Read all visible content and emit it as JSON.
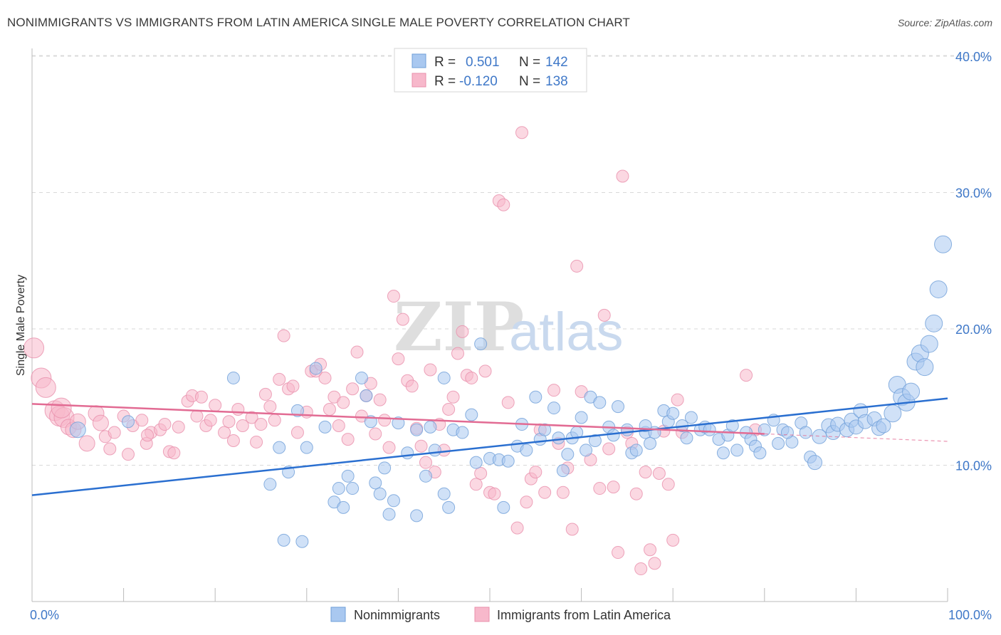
{
  "title": "NONIMMIGRANTS VS IMMIGRANTS FROM LATIN AMERICA SINGLE MALE POVERTY CORRELATION CHART",
  "source": "Source: ZipAtlas.com",
  "watermark": {
    "zip": "ZIP",
    "atlas": "atlas"
  },
  "colors": {
    "blue_fill": "#a9c8f0",
    "blue_stroke": "#6f9fd8",
    "blue_line": "#2a6fd0",
    "pink_fill": "#f7b8cb",
    "pink_stroke": "#e98fab",
    "pink_line": "#e26b93",
    "tick_text": "#3f78c8",
    "grid": "#d9d9d9"
  },
  "legend": {
    "rows": [
      {
        "r_label": "R =",
        "r_value": "0.501",
        "n_label": "N =",
        "n_value": "142"
      },
      {
        "r_label": "R =",
        "r_value": "-0.120",
        "n_label": "N =",
        "n_value": "138"
      }
    ]
  },
  "chart_data": {
    "type": "scatter",
    "title": "NONIMMIGRANTS VS IMMIGRANTS FROM LATIN AMERICA SINGLE MALE POVERTY CORRELATION CHART",
    "xlabel": "",
    "ylabel": "Single Male Poverty",
    "xlim": [
      0,
      100
    ],
    "ylim": [
      0,
      42
    ],
    "x_tick_labels": [
      "0.0%",
      "100.0%"
    ],
    "y_ticks": [
      10,
      20,
      30,
      40
    ],
    "y_tick_labels": [
      "10.0%",
      "20.0%",
      "30.0%",
      "40.0%"
    ],
    "grid": true,
    "legend_position": "top-center",
    "series": [
      {
        "name": "Nonimmigrants",
        "color": "#a9c8f0",
        "trend": {
          "x": [
            0,
            100
          ],
          "y": [
            7.8,
            14.9
          ]
        },
        "points": [
          [
            22,
            16.4
          ],
          [
            27,
            11.3
          ],
          [
            26,
            8.6
          ],
          [
            27.5,
            4.5
          ],
          [
            28,
            9.5
          ],
          [
            29,
            14
          ],
          [
            29.5,
            4.4
          ],
          [
            30,
            11.3
          ],
          [
            31,
            17.1
          ],
          [
            32,
            12.8
          ],
          [
            33,
            7.3
          ],
          [
            33.5,
            8.3
          ],
          [
            34,
            6.9
          ],
          [
            34.5,
            9.2
          ],
          [
            35,
            8.3
          ],
          [
            36,
            16.4
          ],
          [
            36.5,
            15.1
          ],
          [
            37,
            13.2
          ],
          [
            37.5,
            8.7
          ],
          [
            38,
            7.9
          ],
          [
            38.5,
            9.8
          ],
          [
            39,
            6.4
          ],
          [
            39.5,
            7.4
          ],
          [
            40,
            13.1
          ],
          [
            41,
            10.9
          ],
          [
            42,
            12.6
          ],
          [
            42,
            6.3
          ],
          [
            43,
            9.2
          ],
          [
            43.5,
            12.8
          ],
          [
            44,
            11.1
          ],
          [
            45,
            7.9
          ],
          [
            45,
            16.4
          ],
          [
            45.5,
            6.9
          ],
          [
            46,
            12.6
          ],
          [
            47,
            12.4
          ],
          [
            48,
            13.7
          ],
          [
            48.5,
            10.2
          ],
          [
            49,
            18.9
          ],
          [
            50,
            10.5
          ],
          [
            51,
            10.4
          ],
          [
            51.5,
            6.9
          ],
          [
            52,
            10.3
          ],
          [
            53,
            11.4
          ],
          [
            53.5,
            13
          ],
          [
            54,
            11.1
          ],
          [
            55,
            15
          ],
          [
            55.5,
            11.9
          ],
          [
            56,
            12.6
          ],
          [
            57,
            14.2
          ],
          [
            57.5,
            12
          ],
          [
            58,
            9.6
          ],
          [
            58.5,
            10.8
          ],
          [
            59,
            12
          ],
          [
            60,
            13.5
          ],
          [
            60.5,
            11.1
          ],
          [
            61,
            15
          ],
          [
            61.5,
            11.8
          ],
          [
            62,
            14.6
          ],
          [
            63,
            12.8
          ],
          [
            63.5,
            12.2
          ],
          [
            64,
            14.3
          ],
          [
            65,
            12.6
          ],
          [
            65.5,
            10.9
          ],
          [
            66,
            11.1
          ],
          [
            67,
            12.4
          ],
          [
            67.5,
            11.6
          ],
          [
            68,
            12.4
          ],
          [
            69,
            14
          ],
          [
            69.5,
            13.2
          ],
          [
            70,
            13.8
          ],
          [
            71,
            12.9
          ],
          [
            71.5,
            12
          ],
          [
            72,
            13.5
          ],
          [
            73,
            12.6
          ],
          [
            73.5,
            12.8
          ],
          [
            74,
            12.6
          ],
          [
            75,
            11.9
          ],
          [
            75.5,
            10.9
          ],
          [
            76,
            12.2
          ],
          [
            76.5,
            12.9
          ],
          [
            77,
            11.1
          ],
          [
            78,
            12.4
          ],
          [
            78.5,
            11.9
          ],
          [
            79,
            11.4
          ],
          [
            79.5,
            10.9
          ],
          [
            80,
            12.6
          ],
          [
            81,
            13.3
          ],
          [
            81.5,
            11.6
          ],
          [
            82,
            12.6
          ],
          [
            83,
            11.7
          ],
          [
            84,
            13.1
          ],
          [
            84.5,
            12.4
          ],
          [
            85,
            10.6
          ],
          [
            85.5,
            10.2
          ],
          [
            86,
            12.1
          ],
          [
            87,
            12.9
          ],
          [
            87.5,
            12.4
          ],
          [
            88,
            13
          ],
          [
            89,
            12.6
          ],
          [
            89.5,
            13.3
          ],
          [
            90,
            12.8
          ],
          [
            90.5,
            14
          ],
          [
            91,
            13.2
          ],
          [
            92,
            13.4
          ],
          [
            92.5,
            12.7
          ],
          [
            93,
            12.9
          ],
          [
            94,
            13.8
          ],
          [
            94.5,
            15.9
          ],
          [
            95,
            15
          ],
          [
            95.5,
            14.6
          ],
          [
            96,
            15.4
          ],
          [
            96.5,
            17.6
          ],
          [
            97,
            18.2
          ],
          [
            97.5,
            17.2
          ],
          [
            98,
            18.9
          ],
          [
            98.5,
            20.4
          ],
          [
            99,
            22.9
          ],
          [
            99.5,
            26.2
          ],
          [
            10.5,
            13.2
          ],
          [
            5,
            12.6
          ],
          [
            59.5,
            12.4
          ],
          [
            67,
            12.9
          ],
          [
            82.5,
            12.4
          ]
        ]
      },
      {
        "name": "Immigrants from Latin America",
        "color": "#f7b8cb",
        "trend": {
          "x": [
            0,
            80
          ],
          "y": [
            14.5,
            12.3
          ]
        },
        "points": [
          [
            0.2,
            18.6
          ],
          [
            1,
            16.4
          ],
          [
            1.5,
            15.7
          ],
          [
            2.5,
            14
          ],
          [
            3,
            13.6
          ],
          [
            3.5,
            13.5
          ],
          [
            4,
            12.8
          ],
          [
            4.5,
            12.6
          ],
          [
            5,
            13.2
          ],
          [
            6,
            11.6
          ],
          [
            7,
            13.8
          ],
          [
            7.5,
            13.1
          ],
          [
            8,
            12.1
          ],
          [
            8.5,
            11.2
          ],
          [
            9,
            12.4
          ],
          [
            10,
            13.6
          ],
          [
            10.5,
            10.8
          ],
          [
            11,
            12.9
          ],
          [
            12,
            13.3
          ],
          [
            12.5,
            11.6
          ],
          [
            13,
            12.4
          ],
          [
            14,
            12.6
          ],
          [
            14.5,
            13
          ],
          [
            15,
            11
          ],
          [
            15.5,
            10.9
          ],
          [
            16,
            12.8
          ],
          [
            17,
            14.7
          ],
          [
            17.5,
            15.1
          ],
          [
            18,
            13.6
          ],
          [
            19,
            12.9
          ],
          [
            19.5,
            13.3
          ],
          [
            20,
            14.4
          ],
          [
            21,
            12.4
          ],
          [
            21.5,
            13.2
          ],
          [
            22,
            11.8
          ],
          [
            22.5,
            14.1
          ],
          [
            23,
            12.9
          ],
          [
            24,
            13.5
          ],
          [
            24.5,
            11.7
          ],
          [
            25,
            13
          ],
          [
            25.5,
            15.2
          ],
          [
            26,
            14.3
          ],
          [
            26.5,
            13.3
          ],
          [
            27,
            16.3
          ],
          [
            27.5,
            19.5
          ],
          [
            28,
            15.6
          ],
          [
            28.5,
            15.8
          ],
          [
            29,
            12.4
          ],
          [
            30,
            13.9
          ],
          [
            30.5,
            16.9
          ],
          [
            31,
            16.9
          ],
          [
            31.5,
            17.4
          ],
          [
            32,
            16.4
          ],
          [
            32.5,
            14.1
          ],
          [
            33,
            15
          ],
          [
            33.5,
            12.9
          ],
          [
            34,
            14.6
          ],
          [
            34.5,
            11.9
          ],
          [
            35,
            15.6
          ],
          [
            35.5,
            18.3
          ],
          [
            36,
            13.6
          ],
          [
            36.5,
            15.1
          ],
          [
            37,
            16
          ],
          [
            37.5,
            12.3
          ],
          [
            38,
            14.8
          ],
          [
            38.5,
            13.3
          ],
          [
            39,
            11.3
          ],
          [
            39.5,
            22.4
          ],
          [
            40,
            17.8
          ],
          [
            40.5,
            20.7
          ],
          [
            41,
            16.2
          ],
          [
            41.5,
            15.8
          ],
          [
            42,
            12.7
          ],
          [
            42.5,
            11.4
          ],
          [
            43,
            10.2
          ],
          [
            43.5,
            17
          ],
          [
            44,
            9.5
          ],
          [
            44.5,
            13
          ],
          [
            45,
            11.1
          ],
          [
            45.5,
            14.1
          ],
          [
            46,
            15
          ],
          [
            46.5,
            18.2
          ],
          [
            47,
            19.8
          ],
          [
            47.5,
            16.6
          ],
          [
            48,
            16.4
          ],
          [
            48.5,
            8.6
          ],
          [
            49,
            9.4
          ],
          [
            49.5,
            16.9
          ],
          [
            50,
            8.0
          ],
          [
            50.5,
            7.9
          ],
          [
            51,
            29.4
          ],
          [
            51.5,
            29.1
          ],
          [
            52,
            14.6
          ],
          [
            53,
            5.4
          ],
          [
            53.5,
            34.4
          ],
          [
            54,
            7.3
          ],
          [
            54.5,
            9
          ],
          [
            55,
            9.5
          ],
          [
            55.5,
            12.6
          ],
          [
            56,
            8.0
          ],
          [
            57,
            15.5
          ],
          [
            57.5,
            11.6
          ],
          [
            58,
            8
          ],
          [
            58.5,
            9.8
          ],
          [
            59,
            5.3
          ],
          [
            59.5,
            24.6
          ],
          [
            60,
            15.4
          ],
          [
            61,
            10.4
          ],
          [
            62,
            8.3
          ],
          [
            62.5,
            21
          ],
          [
            63,
            11.2
          ],
          [
            63.5,
            8.4
          ],
          [
            64,
            3.6
          ],
          [
            64.5,
            31.2
          ],
          [
            65,
            12.4
          ],
          [
            65.5,
            11.6
          ],
          [
            66,
            7.9
          ],
          [
            66.5,
            2.4
          ],
          [
            67,
            9.5
          ],
          [
            67.5,
            3.8
          ],
          [
            68,
            2.8
          ],
          [
            68.5,
            9.4
          ],
          [
            69,
            12.5
          ],
          [
            69.5,
            8.6
          ],
          [
            70,
            4.5
          ],
          [
            70.5,
            14.8
          ],
          [
            71,
            12.4
          ],
          [
            78,
            16.6
          ],
          [
            79,
            12.6
          ],
          [
            12.6,
            12.2
          ],
          [
            18.5,
            15
          ],
          [
            3.2,
            14.2
          ]
        ]
      }
    ]
  },
  "bottom_legend": [
    {
      "label": "Nonimmigrants"
    },
    {
      "label": "Immigrants from Latin America"
    }
  ]
}
